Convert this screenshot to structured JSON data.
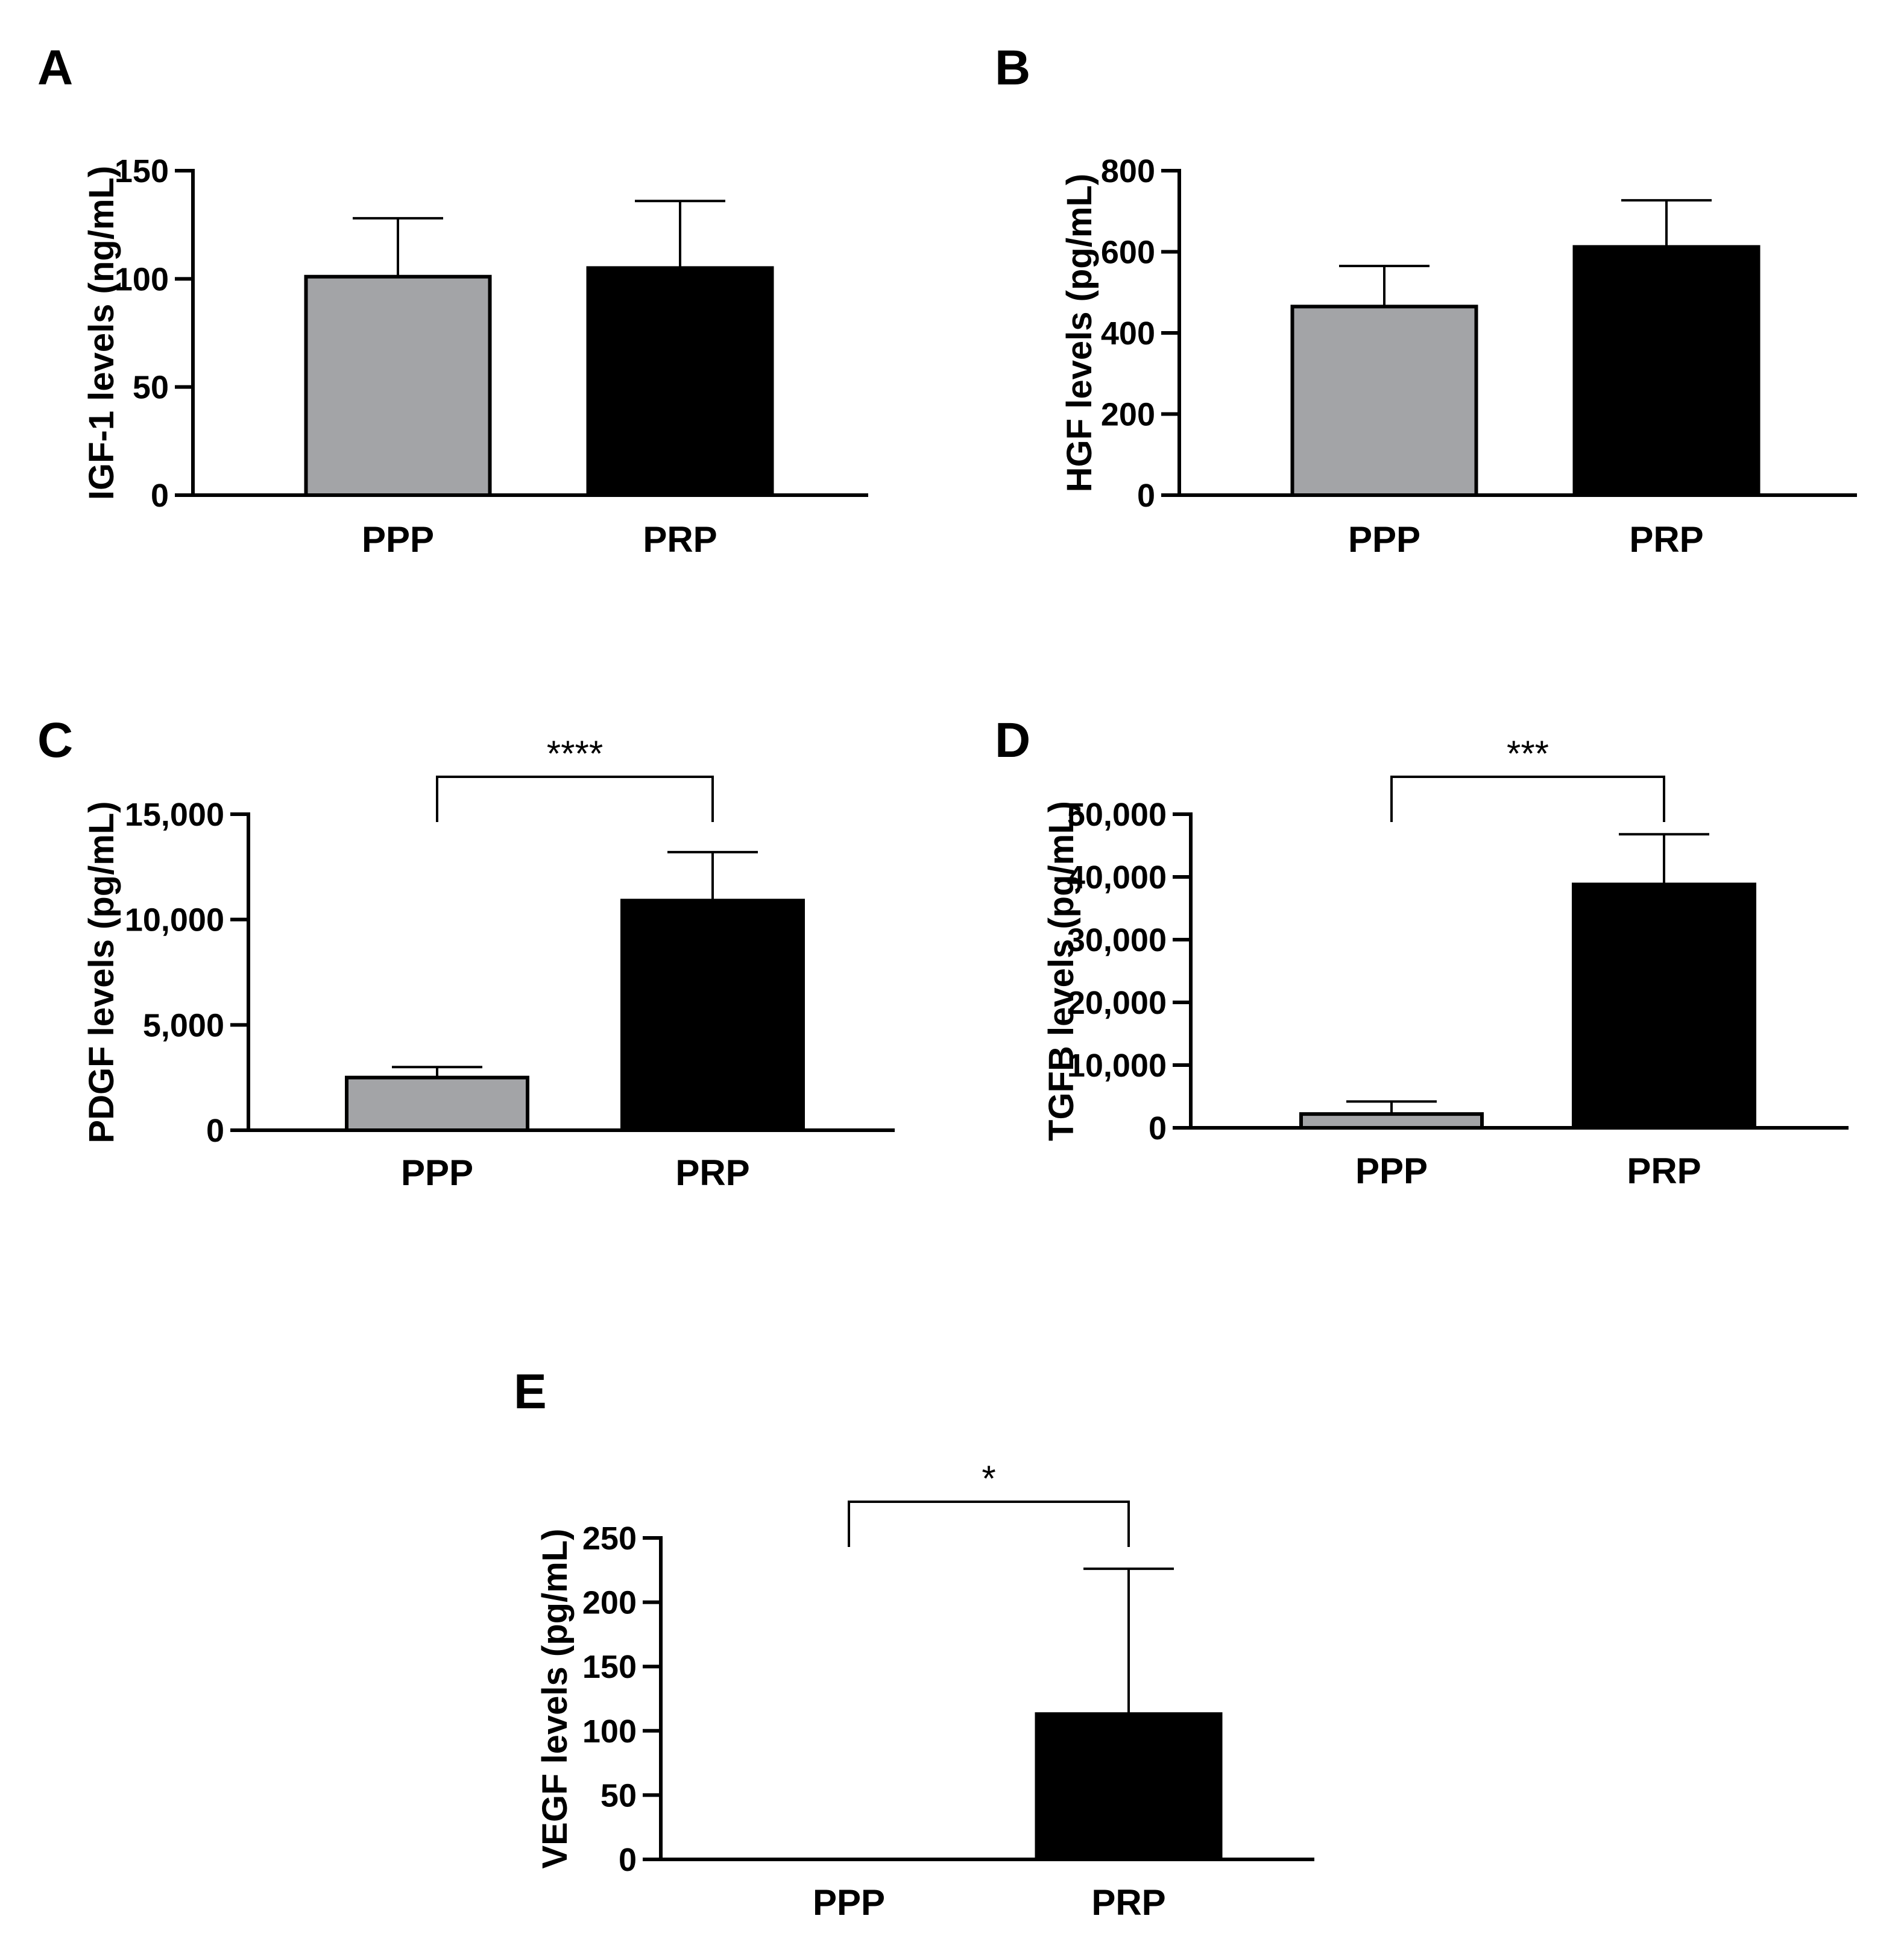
{
  "colors": {
    "ppp": "#a3a4a7",
    "prp": "#000000",
    "axis": "#000000"
  },
  "chart_data": [
    {
      "panel": "A",
      "type": "bar",
      "categories": [
        "PPP",
        "PRP"
      ],
      "values": [
        101,
        105
      ],
      "errors": [
        27,
        31
      ],
      "ylabel": "IGF-1 levels (ng/mL)",
      "ylim": [
        0,
        150
      ],
      "yticks": [
        0,
        50,
        100,
        150
      ],
      "ytick_labels": [
        "0",
        "50",
        "100",
        "150"
      ],
      "significance": null
    },
    {
      "panel": "B",
      "type": "bar",
      "categories": [
        "PPP",
        "PRP"
      ],
      "values": [
        465,
        612
      ],
      "errors": [
        100,
        115
      ],
      "ylabel": "HGF levels (pg/mL)",
      "ylim": [
        0,
        800
      ],
      "yticks": [
        0,
        200,
        400,
        600,
        800
      ],
      "ytick_labels": [
        "0",
        "200",
        "400",
        "600",
        "800"
      ],
      "significance": null
    },
    {
      "panel": "C",
      "type": "bar",
      "categories": [
        "PPP",
        "PRP"
      ],
      "values": [
        2500,
        10900
      ],
      "errors": [
        500,
        2300
      ],
      "ylabel": "PDGF levels (pg/mL)",
      "ylim": [
        0,
        15000
      ],
      "yticks": [
        0,
        5000,
        10000,
        15000
      ],
      "ytick_labels": [
        "0",
        "5,000",
        "10,000",
        "15,000"
      ],
      "significance": {
        "label": "****"
      }
    },
    {
      "panel": "D",
      "type": "bar",
      "categories": [
        "PPP",
        "PRP"
      ],
      "values": [
        2200,
        38800
      ],
      "errors": [
        2000,
        8000
      ],
      "ylabel": "TGFB levels (pg/mL)",
      "ylim": [
        0,
        50000
      ],
      "yticks": [
        0,
        10000,
        20000,
        30000,
        40000,
        50000
      ],
      "ytick_labels": [
        "0",
        "10,000",
        "20,000",
        "30,000",
        "40,000",
        "50,000"
      ],
      "significance": {
        "label": "***"
      }
    },
    {
      "panel": "E",
      "type": "bar",
      "categories": [
        "PPP",
        "PRP"
      ],
      "values": [
        0,
        113
      ],
      "errors": [
        0,
        113
      ],
      "ylabel": "VEGF levels (pg/mL)",
      "ylim": [
        0,
        250
      ],
      "yticks": [
        0,
        50,
        100,
        150,
        200,
        250
      ],
      "ytick_labels": [
        "0",
        "50",
        "100",
        "150",
        "200",
        "250"
      ],
      "significance": {
        "label": "*"
      }
    }
  ]
}
